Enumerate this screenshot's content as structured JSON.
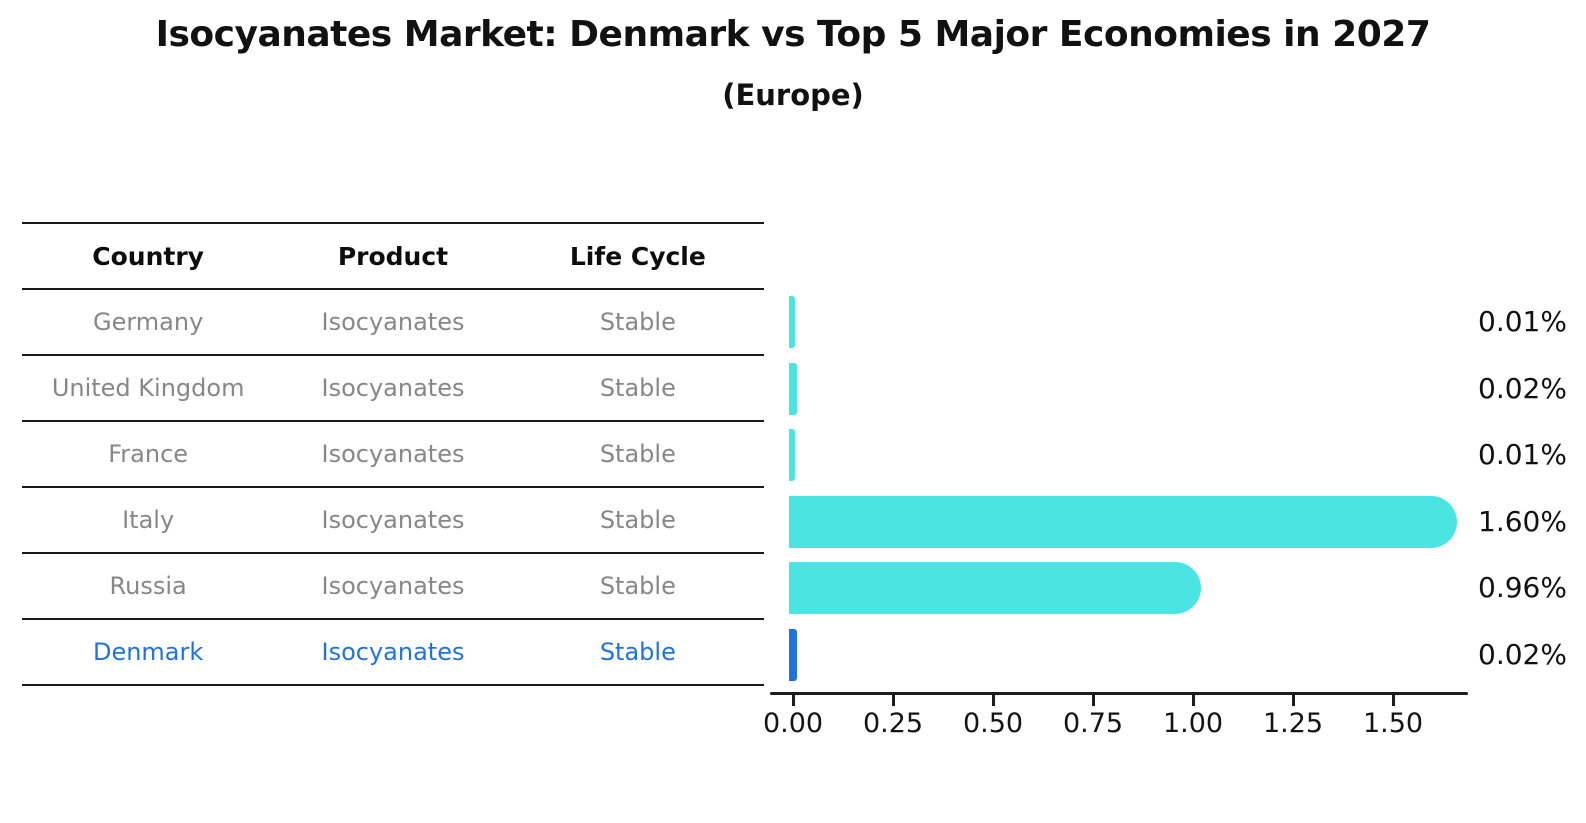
{
  "title": "Isocyanates Market: Denmark vs Top 5 Major Economies in 2027",
  "subtitle": "(Europe)",
  "table": {
    "headers": [
      "Country",
      "Product",
      "Life Cycle"
    ],
    "rows": [
      {
        "country": "Germany",
        "product": "Isocyanates",
        "life_cycle": "Stable",
        "highlight": false
      },
      {
        "country": "United Kingdom",
        "product": "Isocyanates",
        "life_cycle": "Stable",
        "highlight": false
      },
      {
        "country": "France",
        "product": "Isocyanates",
        "life_cycle": "Stable",
        "highlight": false
      },
      {
        "country": "Italy",
        "product": "Isocyanates",
        "life_cycle": "Stable",
        "highlight": false
      },
      {
        "country": "Russia",
        "product": "Isocyanates",
        "life_cycle": "Stable",
        "highlight": false
      },
      {
        "country": "Denmark",
        "product": "Isocyanates",
        "life_cycle": "Stable",
        "highlight": true
      }
    ]
  },
  "chart_data": {
    "type": "bar",
    "orientation": "horizontal",
    "title": "Isocyanates Market: Denmark vs Top 5 Major Economies in 2027",
    "subtitle": "(Europe)",
    "categories": [
      "Germany",
      "United Kingdom",
      "France",
      "Italy",
      "Russia",
      "Denmark"
    ],
    "values": [
      0.01,
      0.02,
      0.01,
      1.6,
      0.96,
      0.02
    ],
    "value_labels": [
      "0.01%",
      "0.02%",
      "0.01%",
      "1.60%",
      "0.96%",
      "0.02%"
    ],
    "x_tick_labels": [
      "0.00",
      "0.25",
      "0.50",
      "0.75",
      "1.00",
      "1.25",
      "1.50"
    ],
    "x_tick_values": [
      0,
      0.25,
      0.5,
      0.75,
      1.0,
      1.25,
      1.5
    ],
    "xlim": [
      0,
      1.69
    ],
    "grid": false,
    "legend": false,
    "bar_color": "#4AE5E2",
    "highlight_color": "#1E74DC",
    "highlight_index": 5
  },
  "colors": {
    "text_dark": "#111111",
    "text_gray": "#878787",
    "axis": "#1c1c1c"
  }
}
